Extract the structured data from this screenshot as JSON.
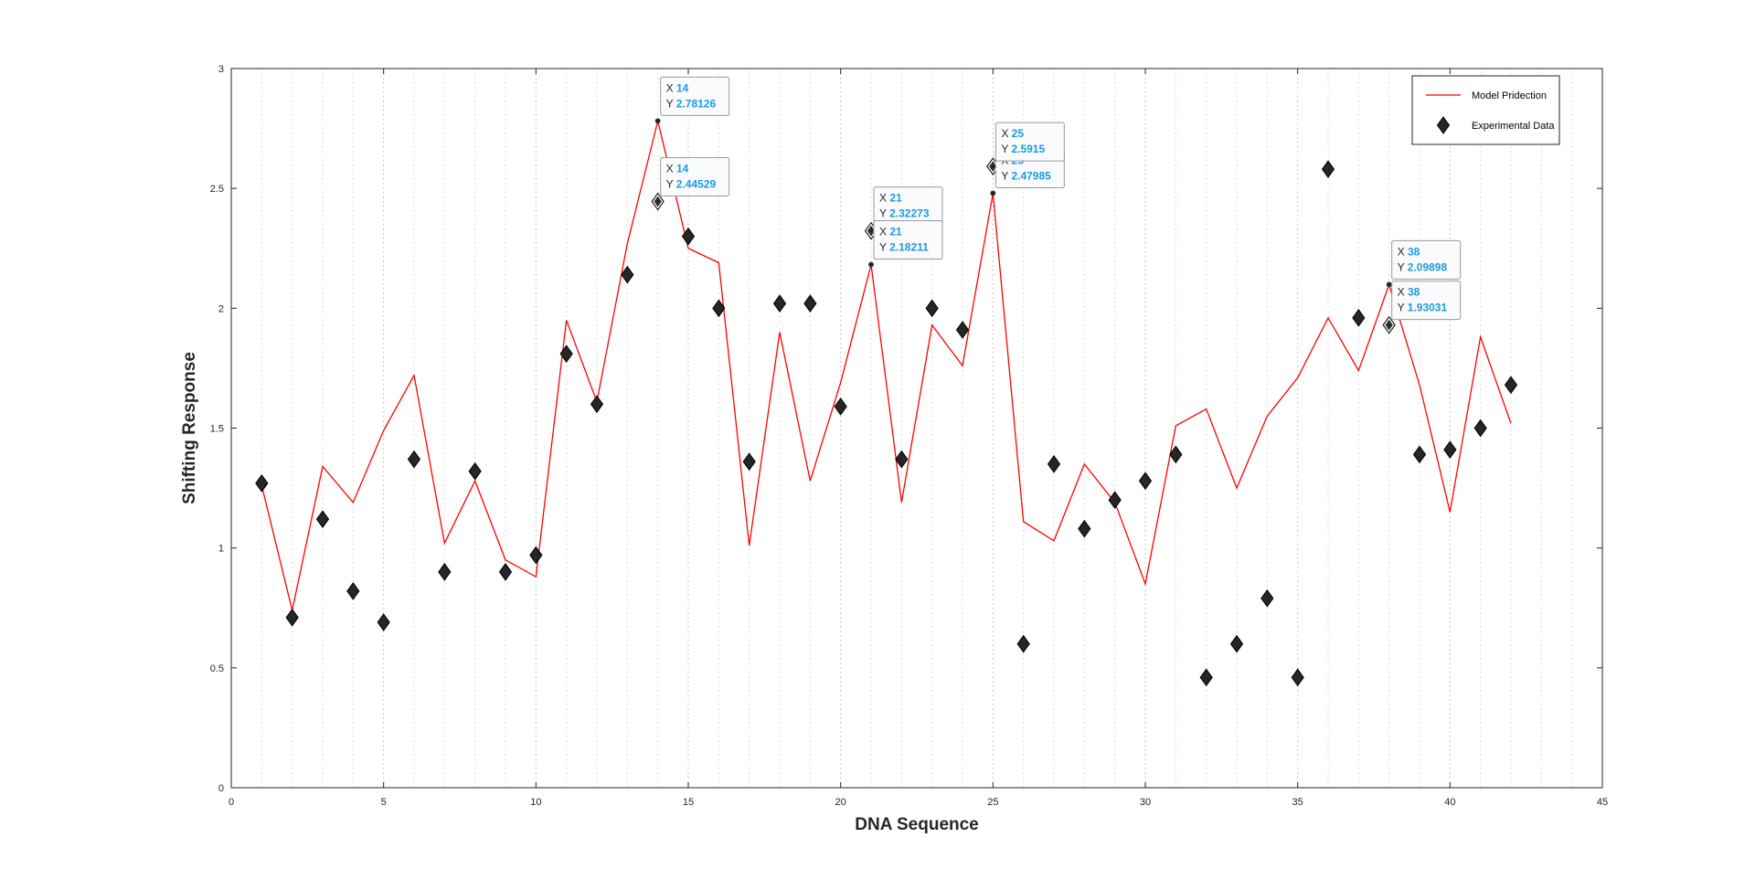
{
  "chart_data": {
    "type": "line",
    "title": "",
    "xlabel": "DNA Sequence",
    "ylabel": "Shifting Response",
    "xlim": [
      0,
      45
    ],
    "ylim": [
      0,
      3
    ],
    "x_ticks": [
      0,
      5,
      10,
      15,
      20,
      25,
      30,
      35,
      40,
      45
    ],
    "y_ticks": [
      0,
      0.5,
      1,
      1.5,
      2,
      2.5,
      3
    ],
    "x_tick_labels": [
      "0",
      "5",
      "10",
      "15",
      "20",
      "25",
      "30",
      "35",
      "40",
      "45"
    ],
    "y_tick_labels": [
      "0",
      "0.5",
      "1",
      "1.5",
      "2",
      "2.5",
      "3"
    ],
    "grid": "vertical-dotted",
    "legend_position": "top-right",
    "series": [
      {
        "name": "Model Pridection",
        "kind": "line",
        "color": "#ff0000",
        "x": [
          1,
          2,
          3,
          4,
          5,
          6,
          7,
          8,
          9,
          10,
          11,
          12,
          13,
          14,
          15,
          16,
          17,
          18,
          19,
          20,
          21,
          22,
          23,
          24,
          25,
          26,
          27,
          28,
          29,
          30,
          31,
          32,
          33,
          34,
          35,
          36,
          37,
          38,
          39,
          40,
          41,
          42
        ],
        "values": [
          1.26,
          0.74,
          1.34,
          1.19,
          1.49,
          1.72,
          1.02,
          1.28,
          0.95,
          0.88,
          1.95,
          1.61,
          2.27,
          2.78126,
          2.25,
          2.19,
          1.01,
          1.9,
          1.28,
          1.69,
          2.18211,
          1.19,
          1.93,
          1.76,
          2.47985,
          1.11,
          1.03,
          1.35,
          1.19,
          0.85,
          1.51,
          1.58,
          1.25,
          1.55,
          1.71,
          1.96,
          1.74,
          2.09898,
          1.68,
          1.15,
          1.88,
          1.52
        ]
      },
      {
        "name": "Experimental Data",
        "kind": "scatter",
        "marker": "diamond",
        "color": "#262626",
        "x": [
          1,
          2,
          3,
          4,
          5,
          6,
          7,
          8,
          9,
          10,
          11,
          12,
          13,
          14,
          15,
          16,
          17,
          18,
          19,
          20,
          21,
          22,
          23,
          24,
          25,
          26,
          27,
          28,
          29,
          30,
          31,
          32,
          33,
          34,
          35,
          36,
          37,
          38,
          39,
          40,
          41,
          42
        ],
        "values": [
          1.27,
          0.71,
          1.12,
          0.82,
          0.69,
          1.37,
          0.9,
          1.32,
          0.9,
          0.97,
          1.81,
          1.6,
          2.14,
          2.44529,
          2.3,
          2.0,
          1.36,
          2.02,
          2.02,
          1.59,
          2.32273,
          1.37,
          2.0,
          1.91,
          2.5915,
          0.6,
          1.35,
          1.08,
          1.2,
          1.28,
          1.39,
          0.46,
          0.6,
          0.79,
          0.46,
          2.58,
          1.96,
          1.93031,
          1.39,
          1.41,
          1.5,
          1.68
        ]
      }
    ],
    "datatips": [
      {
        "x": 14,
        "y": 2.78126,
        "x_text": "14",
        "y_text": "2.78126",
        "series": "Model Pridection"
      },
      {
        "x": 14,
        "y": 2.44529,
        "x_text": "14",
        "y_text": "2.44529",
        "series": "Experimental Data"
      },
      {
        "x": 21,
        "y": 2.32273,
        "x_text": "21",
        "y_text": "2.32273",
        "series": "Experimental Data"
      },
      {
        "x": 21,
        "y": 2.18211,
        "x_text": "21",
        "y_text": "2.18211",
        "series": "Model Pridection"
      },
      {
        "x": 25,
        "y": 2.47985,
        "x_text": "25",
        "y_text": "2.47985",
        "series": "Model Pridection"
      },
      {
        "x": 25,
        "y": 2.5915,
        "x_text": "25",
        "y_text": "2.5915",
        "series": "Experimental Data"
      },
      {
        "x": 38,
        "y": 2.09898,
        "x_text": "38",
        "y_text": "2.09898",
        "series": "Model Pridection"
      },
      {
        "x": 38,
        "y": 1.93031,
        "x_text": "38",
        "y_text": "1.93031",
        "series": "Experimental Data"
      }
    ],
    "datatip_key_x": "X",
    "datatip_key_y": "Y"
  }
}
